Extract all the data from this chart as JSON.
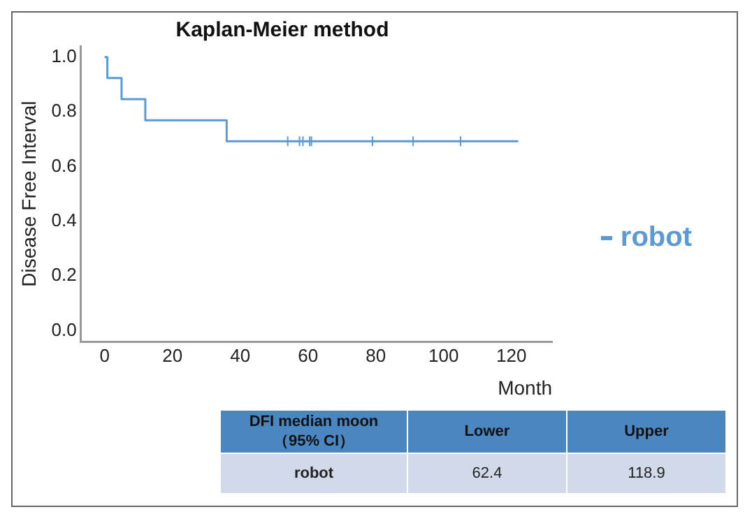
{
  "chart_data": {
    "type": "step",
    "title": "Kaplan-Meier method",
    "xlabel": "Month",
    "ylabel": "Disease Free Interval",
    "xlim": [
      -7,
      132
    ],
    "ylim": [
      -0.04,
      1.04
    ],
    "xticks": [
      0,
      20,
      40,
      60,
      80,
      100,
      120
    ],
    "yticks": [
      {
        "value": 0,
        "label": "0.0"
      },
      {
        "value": 0.2,
        "label": "0.2"
      },
      {
        "value": 0.4,
        "label": "0.4"
      },
      {
        "value": 0.6,
        "label": "0.6"
      },
      {
        "value": 0.8,
        "label": "0.8"
      },
      {
        "value": 1,
        "label": "1.0"
      }
    ],
    "grid": false,
    "legend": "right",
    "marker": "none",
    "line_style": "solid",
    "series": [
      {
        "name": "robot",
        "color": "#5b9bd5",
        "x": [
          0,
          0.8,
          5,
          12,
          36,
          122
        ],
        "values": [
          1,
          0.923,
          0.846,
          0.769,
          0.692,
          0.692
        ]
      },
      {
        "type": "scatter",
        "marker": "cross",
        "color": "#5b9bd5",
        "x": [
          54,
          57.5,
          58.5,
          60.5,
          61,
          79,
          91,
          105
        ],
        "values": [
          0.692,
          0.692,
          0.692,
          0.692,
          0.692,
          0.692,
          0.692,
          0.692
        ]
      }
    ],
    "annotations": [
      "DFI median moon （95% CI）",
      "Lower",
      "Upper",
      "robot",
      "62.4",
      "118.9"
    ]
  }
}
